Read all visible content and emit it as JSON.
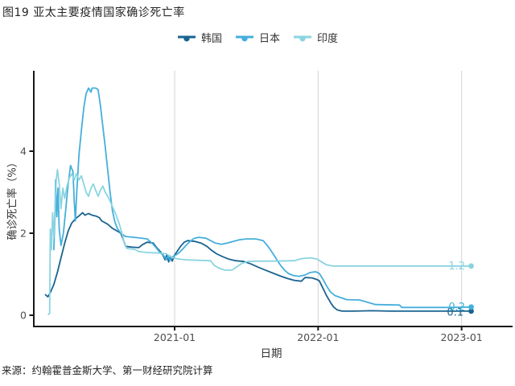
{
  "title": "图19 亚太主要疫情国家确诊死亡率",
  "source": "来源：约翰霍普金斯大学、第一财经研究院计算",
  "legend": {
    "position": "top-center"
  },
  "chart_data": {
    "type": "line",
    "title": "图19 亚太主要疫情国家确诊死亡率",
    "xlabel": "日期",
    "ylabel": "确诊死亡率（%）",
    "x_unit": "months_since_2020-01",
    "grid": "vertical-only",
    "gridline_color": "#d4d4d4",
    "axis_color": "#1a1a1a",
    "tick_label_color": "#4d4d4d",
    "ylim": [
      -0.3,
      5.96
    ],
    "y_ticks": [
      0,
      2,
      4
    ],
    "x_ticks": [
      {
        "t": 12,
        "label": "2021-01"
      },
      {
        "t": 24,
        "label": "2022-01"
      },
      {
        "t": 36,
        "label": "2023-01"
      }
    ],
    "series": [
      {
        "id": "korea",
        "name": "韩国",
        "color": "#1a6390",
        "end_label": "0.1",
        "points": [
          [
            1.2,
            0.5
          ],
          [
            1.4,
            0.45
          ],
          [
            1.6,
            0.55
          ],
          [
            1.9,
            0.75
          ],
          [
            2.2,
            1.05
          ],
          [
            2.5,
            1.4
          ],
          [
            2.8,
            1.75
          ],
          [
            3.1,
            2.05
          ],
          [
            3.4,
            2.25
          ],
          [
            3.7,
            2.35
          ],
          [
            4.0,
            2.42
          ],
          [
            4.3,
            2.5
          ],
          [
            4.5,
            2.44
          ],
          [
            4.8,
            2.48
          ],
          [
            5.1,
            2.44
          ],
          [
            5.4,
            2.42
          ],
          [
            5.7,
            2.38
          ],
          [
            5.9,
            2.3
          ],
          [
            6.4,
            2.22
          ],
          [
            6.8,
            2.12
          ],
          [
            7.2,
            2.05
          ],
          [
            7.5,
            2.0
          ],
          [
            7.7,
            1.85
          ],
          [
            7.9,
            1.68
          ],
          [
            8.4,
            1.66
          ],
          [
            9.0,
            1.65
          ],
          [
            9.3,
            1.72
          ],
          [
            9.7,
            1.78
          ],
          [
            10.2,
            1.76
          ],
          [
            10.5,
            1.65
          ],
          [
            10.8,
            1.55
          ],
          [
            11.0,
            1.48
          ],
          [
            11.2,
            1.35
          ],
          [
            11.35,
            1.47
          ],
          [
            11.5,
            1.3
          ],
          [
            11.65,
            1.44
          ],
          [
            11.8,
            1.32
          ],
          [
            12.0,
            1.47
          ],
          [
            12.2,
            1.55
          ],
          [
            12.5,
            1.68
          ],
          [
            12.8,
            1.78
          ],
          [
            13.1,
            1.82
          ],
          [
            13.7,
            1.8
          ],
          [
            14.2,
            1.76
          ],
          [
            14.7,
            1.68
          ],
          [
            15.1,
            1.58
          ],
          [
            15.5,
            1.5
          ],
          [
            16.0,
            1.43
          ],
          [
            16.5,
            1.37
          ],
          [
            17.1,
            1.33
          ],
          [
            17.8,
            1.31
          ],
          [
            18.4,
            1.25
          ],
          [
            19.0,
            1.17
          ],
          [
            19.6,
            1.1
          ],
          [
            20.2,
            1.03
          ],
          [
            20.8,
            0.96
          ],
          [
            21.4,
            0.9
          ],
          [
            22.0,
            0.85
          ],
          [
            22.6,
            0.83
          ],
          [
            22.9,
            0.92
          ],
          [
            23.5,
            0.91
          ],
          [
            23.9,
            0.87
          ],
          [
            24.1,
            0.84
          ],
          [
            24.3,
            0.72
          ],
          [
            24.5,
            0.6
          ],
          [
            24.7,
            0.48
          ],
          [
            24.9,
            0.38
          ],
          [
            25.1,
            0.28
          ],
          [
            25.3,
            0.2
          ],
          [
            25.6,
            0.13
          ],
          [
            26.0,
            0.1
          ],
          [
            27.0,
            0.1
          ],
          [
            28.5,
            0.11
          ],
          [
            30.0,
            0.1
          ],
          [
            32.0,
            0.1
          ],
          [
            34.0,
            0.1
          ],
          [
            36.8,
            0.1
          ]
        ]
      },
      {
        "id": "japan",
        "name": "日本",
        "color": "#45afdc",
        "end_label": "0.2",
        "points": [
          [
            1.9,
            1.6
          ],
          [
            2.0,
            2.5
          ],
          [
            2.05,
            3.3
          ],
          [
            2.15,
            2.4
          ],
          [
            2.25,
            3.1
          ],
          [
            2.35,
            2.1
          ],
          [
            2.5,
            1.7
          ],
          [
            2.7,
            2.0
          ],
          [
            2.9,
            2.6
          ],
          [
            3.1,
            3.2
          ],
          [
            3.3,
            3.65
          ],
          [
            3.5,
            3.5
          ],
          [
            3.6,
            2.8
          ],
          [
            3.7,
            2.3
          ],
          [
            3.8,
            2.9
          ],
          [
            3.9,
            3.4
          ],
          [
            4.0,
            3.9
          ],
          [
            4.2,
            4.5
          ],
          [
            4.4,
            5.05
          ],
          [
            4.6,
            5.4
          ],
          [
            4.8,
            5.54
          ],
          [
            5.0,
            5.44
          ],
          [
            5.1,
            5.54
          ],
          [
            5.4,
            5.54
          ],
          [
            5.6,
            5.5
          ],
          [
            5.8,
            5.1
          ],
          [
            6.0,
            4.6
          ],
          [
            6.2,
            4.1
          ],
          [
            6.4,
            3.55
          ],
          [
            6.6,
            3.0
          ],
          [
            6.8,
            2.55
          ],
          [
            7.0,
            2.28
          ],
          [
            7.2,
            2.12
          ],
          [
            7.5,
            2.0
          ],
          [
            7.9,
            1.92
          ],
          [
            8.6,
            1.9
          ],
          [
            9.2,
            1.88
          ],
          [
            9.7,
            1.86
          ],
          [
            10.1,
            1.76
          ],
          [
            10.5,
            1.63
          ],
          [
            10.8,
            1.52
          ],
          [
            11.1,
            1.45
          ],
          [
            11.3,
            1.35
          ],
          [
            11.45,
            1.45
          ],
          [
            11.6,
            1.33
          ],
          [
            11.8,
            1.42
          ],
          [
            12.1,
            1.47
          ],
          [
            12.4,
            1.53
          ],
          [
            12.7,
            1.62
          ],
          [
            13.0,
            1.72
          ],
          [
            13.3,
            1.8
          ],
          [
            13.6,
            1.87
          ],
          [
            14.0,
            1.9
          ],
          [
            14.6,
            1.88
          ],
          [
            15.0,
            1.82
          ],
          [
            15.4,
            1.76
          ],
          [
            15.9,
            1.73
          ],
          [
            16.4,
            1.76
          ],
          [
            16.9,
            1.8
          ],
          [
            17.4,
            1.84
          ],
          [
            18.0,
            1.86
          ],
          [
            18.8,
            1.86
          ],
          [
            19.4,
            1.82
          ],
          [
            19.7,
            1.72
          ],
          [
            20.0,
            1.6
          ],
          [
            20.3,
            1.47
          ],
          [
            20.6,
            1.33
          ],
          [
            20.9,
            1.2
          ],
          [
            21.2,
            1.1
          ],
          [
            21.5,
            1.02
          ],
          [
            21.9,
            0.97
          ],
          [
            22.4,
            0.95
          ],
          [
            22.9,
            0.98
          ],
          [
            23.3,
            1.04
          ],
          [
            23.8,
            1.06
          ],
          [
            24.1,
            1.02
          ],
          [
            24.4,
            0.88
          ],
          [
            24.7,
            0.72
          ],
          [
            25.0,
            0.58
          ],
          [
            25.4,
            0.48
          ],
          [
            25.8,
            0.44
          ],
          [
            26.4,
            0.38
          ],
          [
            27.5,
            0.37
          ],
          [
            28.8,
            0.26
          ],
          [
            30.8,
            0.25
          ],
          [
            31.0,
            0.19
          ],
          [
            33.0,
            0.19
          ],
          [
            35.0,
            0.19
          ],
          [
            36.8,
            0.2
          ]
        ]
      },
      {
        "id": "india",
        "name": "印度",
        "color": "#8ad4e0",
        "end_label": "1.2",
        "points": [
          [
            1.45,
            0.02
          ],
          [
            1.55,
            0.05
          ],
          [
            1.6,
            2.1
          ],
          [
            1.7,
            1.6
          ],
          [
            1.8,
            2.5
          ],
          [
            1.9,
            1.9
          ],
          [
            2.0,
            2.6
          ],
          [
            2.1,
            3.3
          ],
          [
            2.2,
            3.55
          ],
          [
            2.35,
            3.2
          ],
          [
            2.5,
            2.6
          ],
          [
            2.65,
            3.1
          ],
          [
            2.8,
            2.85
          ],
          [
            3.0,
            3.15
          ],
          [
            3.2,
            3.35
          ],
          [
            3.4,
            3.45
          ],
          [
            3.6,
            3.3
          ],
          [
            3.8,
            3.45
          ],
          [
            4.0,
            3.3
          ],
          [
            4.2,
            3.4
          ],
          [
            4.4,
            3.2
          ],
          [
            4.6,
            3.0
          ],
          [
            4.8,
            2.9
          ],
          [
            5.0,
            3.1
          ],
          [
            5.2,
            3.2
          ],
          [
            5.4,
            3.05
          ],
          [
            5.6,
            2.9
          ],
          [
            5.8,
            3.05
          ],
          [
            6.0,
            3.15
          ],
          [
            6.2,
            3.0
          ],
          [
            6.5,
            2.85
          ],
          [
            6.8,
            2.65
          ],
          [
            7.1,
            2.45
          ],
          [
            7.4,
            2.2
          ],
          [
            7.6,
            2.0
          ],
          [
            7.8,
            1.75
          ],
          [
            8.0,
            1.63
          ],
          [
            8.7,
            1.6
          ],
          [
            9.0,
            1.55
          ],
          [
            9.7,
            1.53
          ],
          [
            10.5,
            1.52
          ],
          [
            11.3,
            1.5
          ],
          [
            11.7,
            1.42
          ],
          [
            12.3,
            1.37
          ],
          [
            13.0,
            1.35
          ],
          [
            14.0,
            1.34
          ],
          [
            15.0,
            1.33
          ],
          [
            15.3,
            1.22
          ],
          [
            15.7,
            1.15
          ],
          [
            16.2,
            1.1
          ],
          [
            16.8,
            1.1
          ],
          [
            17.2,
            1.18
          ],
          [
            17.6,
            1.26
          ],
          [
            18.1,
            1.31
          ],
          [
            19.0,
            1.32
          ],
          [
            20.5,
            1.32
          ],
          [
            22.0,
            1.33
          ],
          [
            22.6,
            1.38
          ],
          [
            23.4,
            1.4
          ],
          [
            23.9,
            1.37
          ],
          [
            24.3,
            1.3
          ],
          [
            24.7,
            1.23
          ],
          [
            25.2,
            1.2
          ],
          [
            27.0,
            1.2
          ],
          [
            29.0,
            1.2
          ],
          [
            31.0,
            1.2
          ],
          [
            33.0,
            1.2
          ],
          [
            35.0,
            1.2
          ],
          [
            36.8,
            1.2
          ]
        ]
      }
    ]
  }
}
